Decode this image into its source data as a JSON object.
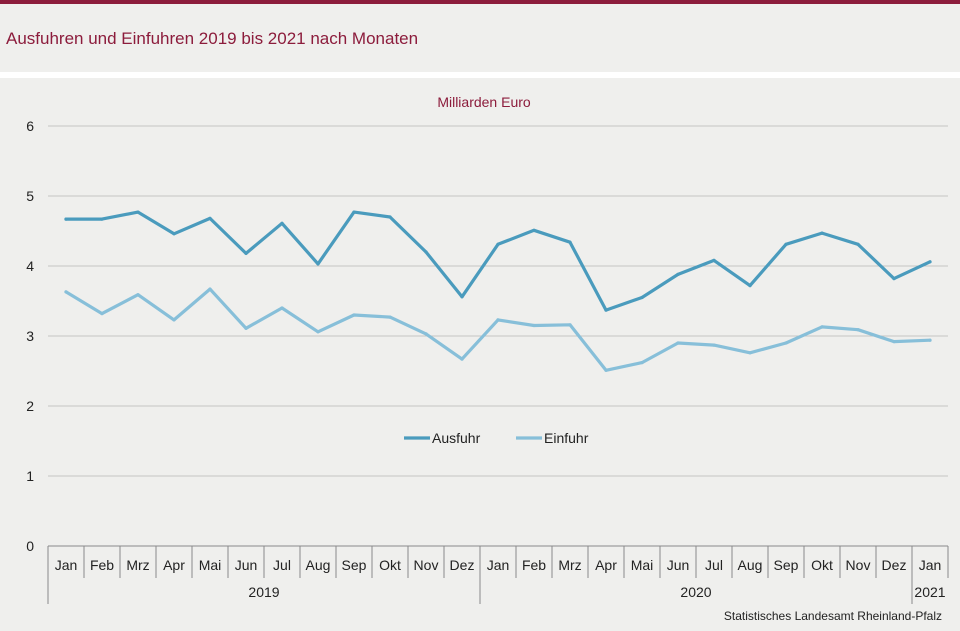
{
  "header": {
    "title": "Ausfuhren und Einfuhren 2019 bis 2021 nach Monaten"
  },
  "footer": {
    "source": "Statistisches Landesamt  Rheinland-Pfalz"
  },
  "chart_data": {
    "type": "line",
    "unit_label": "Milliarden Euro",
    "ylim": [
      0,
      6
    ],
    "yticks": [
      0,
      1,
      2,
      3,
      4,
      5,
      6
    ],
    "grid": true,
    "legend_position": "center",
    "months": [
      "Jan",
      "Feb",
      "Mrz",
      "Apr",
      "Mai",
      "Jun",
      "Jul",
      "Aug",
      "Sep",
      "Okt",
      "Nov",
      "Dez",
      "Jan",
      "Feb",
      "Mrz",
      "Apr",
      "Mai",
      "Jun",
      "Jul",
      "Aug",
      "Sep",
      "Okt",
      "Nov",
      "Dez",
      "Jan"
    ],
    "years": [
      {
        "label": "2019",
        "span": 12
      },
      {
        "label": "2020",
        "span": 12
      },
      {
        "label": "2021",
        "span": 1
      }
    ],
    "series": [
      {
        "name": "Ausfuhr",
        "color": "#4a9bbd",
        "values": [
          4.67,
          4.67,
          4.77,
          4.46,
          4.68,
          4.18,
          4.61,
          4.03,
          4.77,
          4.7,
          4.2,
          3.56,
          4.31,
          4.51,
          4.34,
          3.37,
          3.55,
          3.88,
          4.08,
          3.72,
          4.31,
          4.47,
          4.31,
          3.82,
          4.06
        ]
      },
      {
        "name": "Einfuhr",
        "color": "#87bfd9",
        "values": [
          3.63,
          3.32,
          3.59,
          3.23,
          3.67,
          3.11,
          3.4,
          3.06,
          3.3,
          3.27,
          3.03,
          2.67,
          3.23,
          3.15,
          3.16,
          2.51,
          2.62,
          2.9,
          2.87,
          2.76,
          2.9,
          3.13,
          3.09,
          2.92,
          2.94
        ]
      }
    ]
  }
}
